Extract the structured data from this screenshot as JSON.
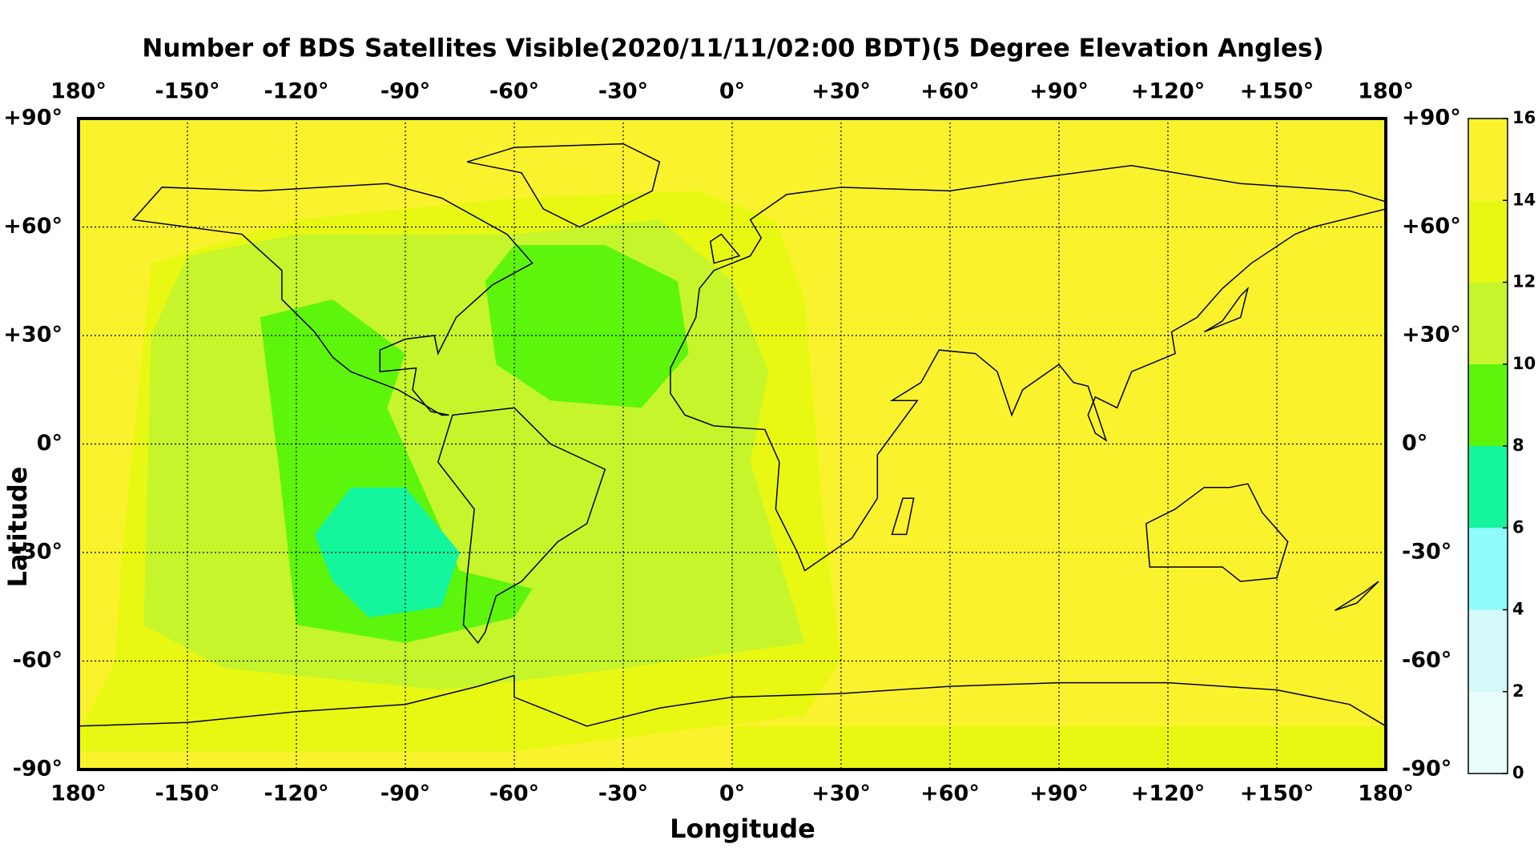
{
  "chart_data": {
    "type": "map",
    "title": "Number of BDS Satellites Visible(2020/11/11/02:00 BDT)(5 Degree Elevation Angles)",
    "xlabel": "Longitude",
    "ylabel": "Latitude",
    "xlim": [
      -180,
      180
    ],
    "ylim": [
      -90,
      90
    ],
    "xticks": [
      {
        "value": -180,
        "label": "180°"
      },
      {
        "value": -150,
        "label": "-150°"
      },
      {
        "value": -120,
        "label": "-120°"
      },
      {
        "value": -90,
        "label": "-90°"
      },
      {
        "value": -60,
        "label": "-60°"
      },
      {
        "value": -30,
        "label": "-30°"
      },
      {
        "value": 0,
        "label": "0°"
      },
      {
        "value": 30,
        "label": "+30°"
      },
      {
        "value": 60,
        "label": "+60°"
      },
      {
        "value": 90,
        "label": "+90°"
      },
      {
        "value": 120,
        "label": "+120°"
      },
      {
        "value": 150,
        "label": "+150°"
      },
      {
        "value": 180,
        "label": "180°"
      }
    ],
    "yticks": [
      {
        "value": -90,
        "label": "-90°"
      },
      {
        "value": -60,
        "label": "-60°"
      },
      {
        "value": -30,
        "label": "-30°"
      },
      {
        "value": 0,
        "label": "0°"
      },
      {
        "value": 30,
        "label": "+30°"
      },
      {
        "value": 60,
        "label": "+60°"
      },
      {
        "value": 90,
        "label": "+90°"
      }
    ],
    "grid": true,
    "colorbar": {
      "ticks": [
        0,
        2,
        4,
        6,
        8,
        10,
        12,
        14,
        16
      ],
      "colors": [
        "#eafdfd",
        "#d4fafa",
        "#8ffbfb",
        "#14f59e",
        "#5ef50c",
        "#c6f52c",
        "#e8f812",
        "#fbf22e"
      ]
    }
  }
}
